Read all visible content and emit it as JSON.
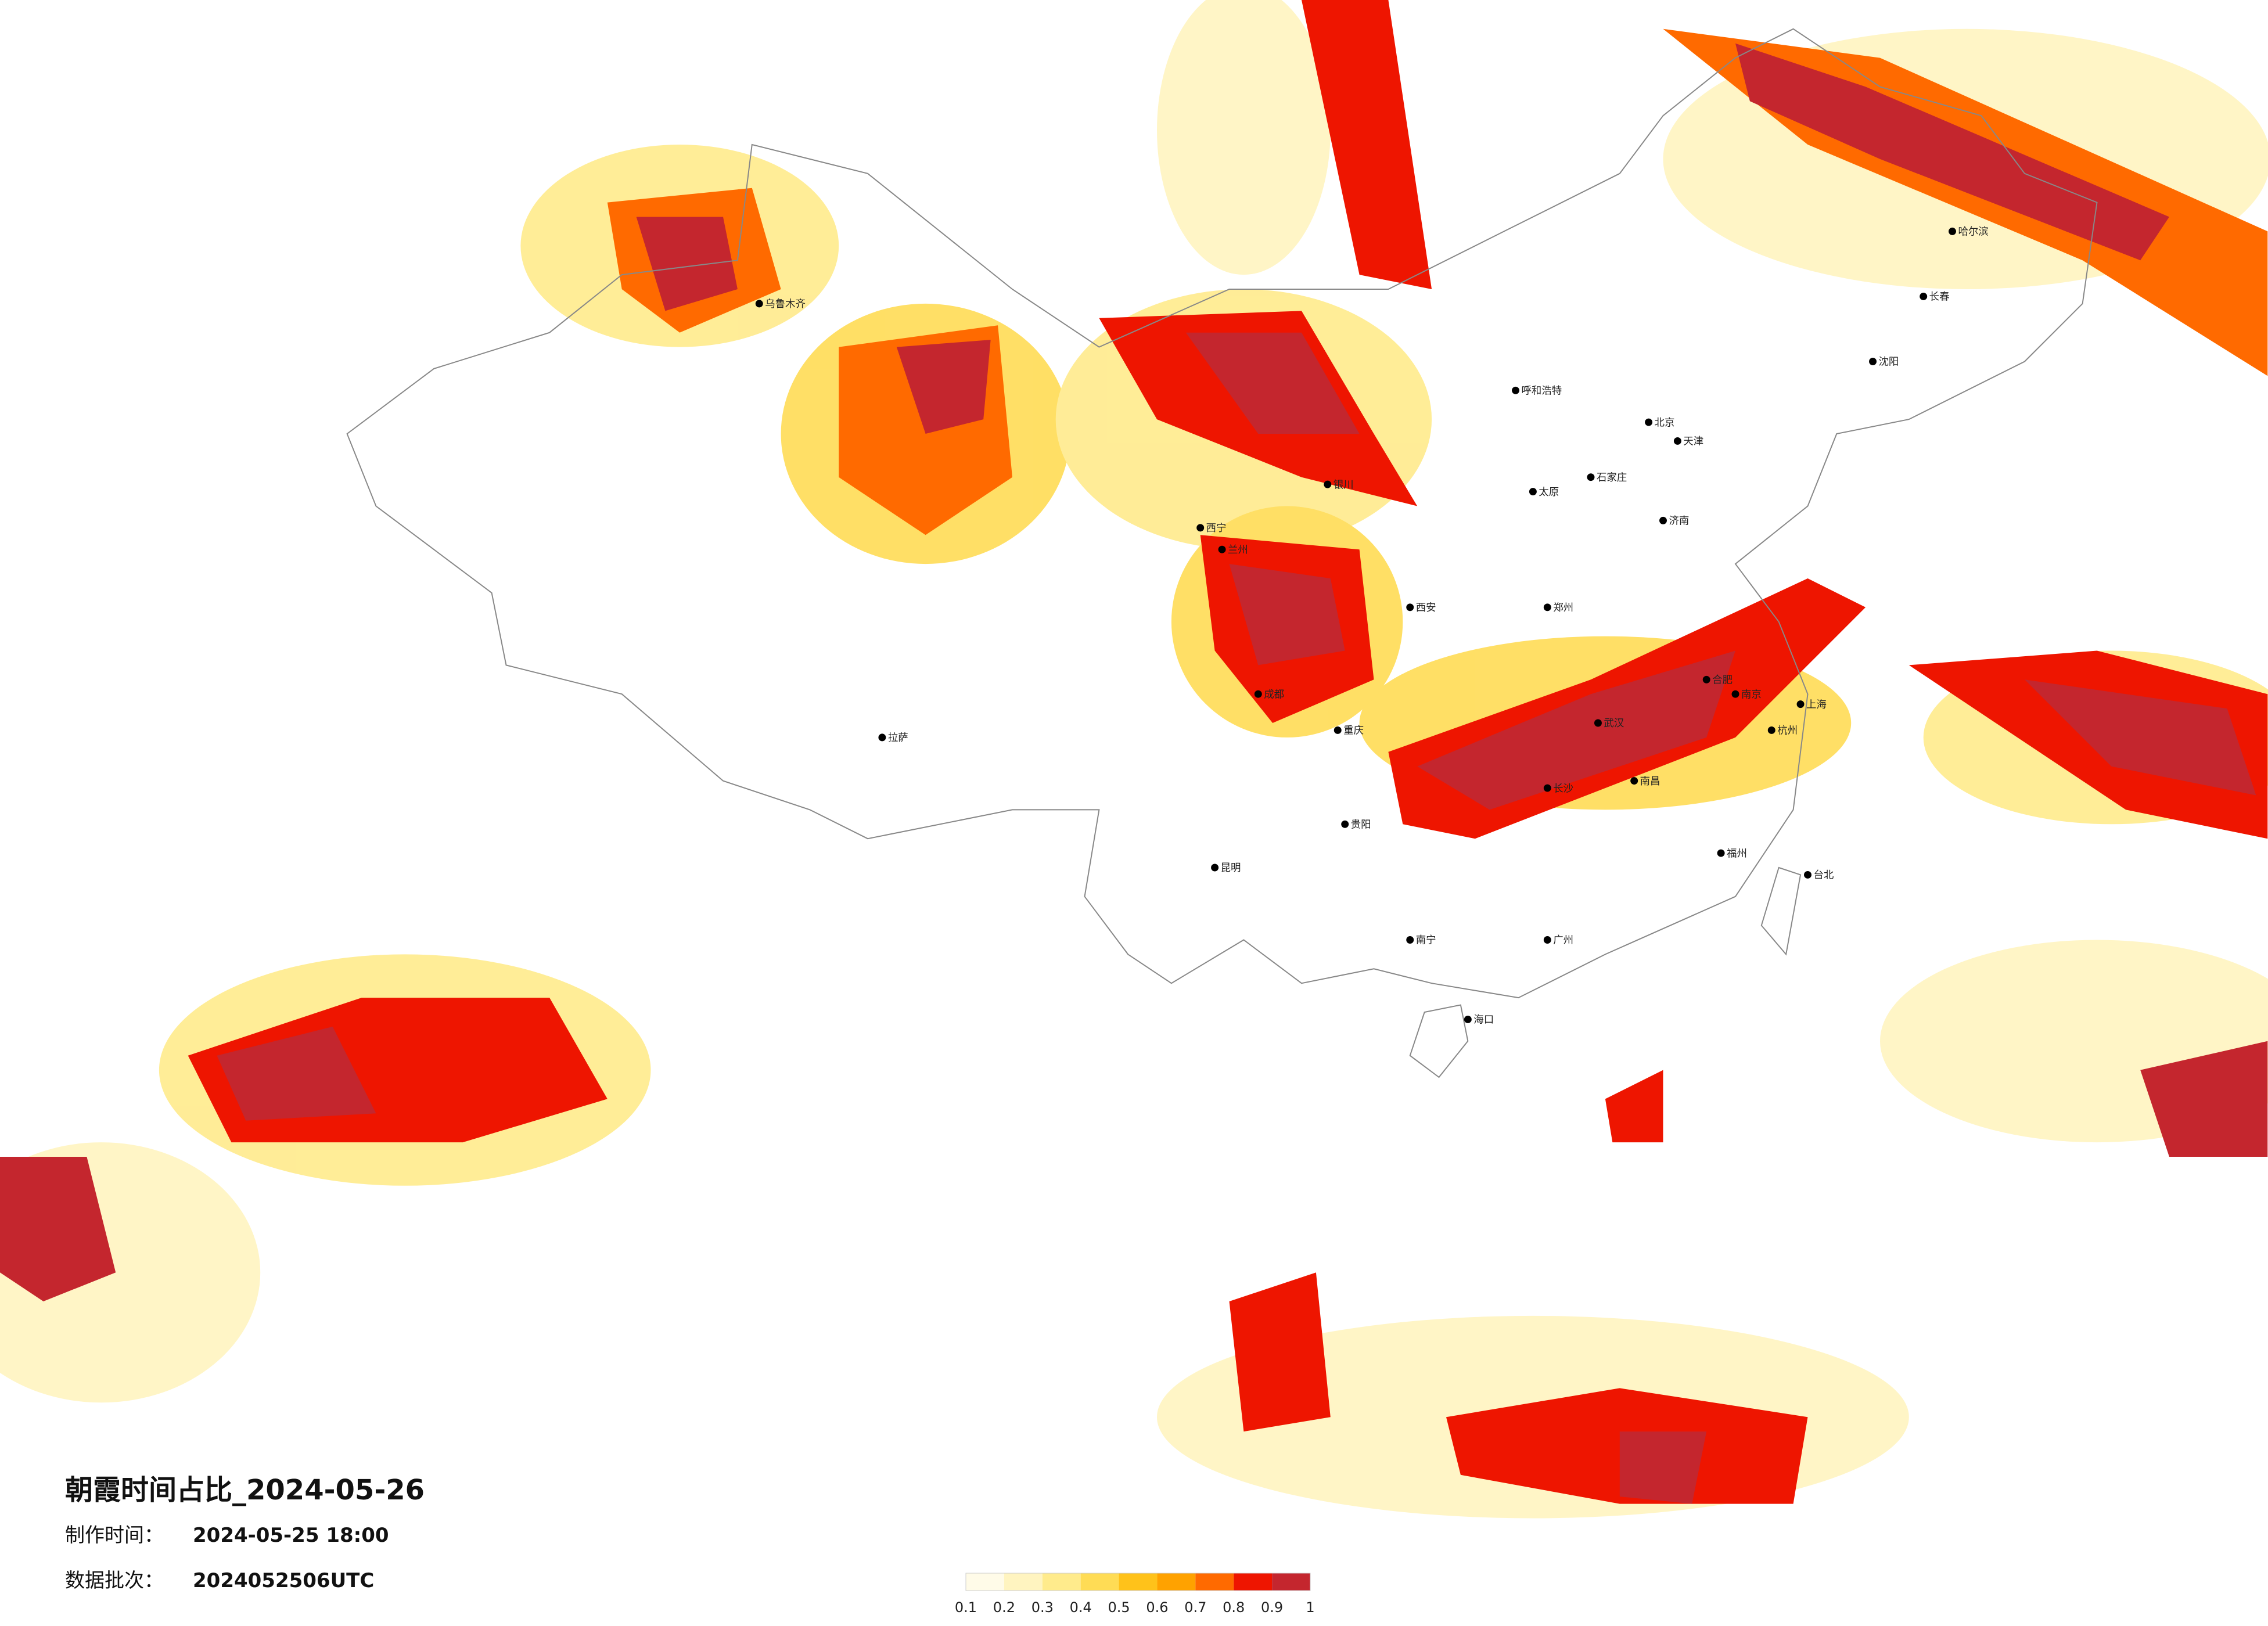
{
  "title": "朝霞时间占比_2024-05-26",
  "made_label": "制作时间：",
  "made_time": "2024-05-25 18:00",
  "batch_label": "数据批次：",
  "batch": "2024052506UTC",
  "colorbar": {
    "colors": [
      "#fffbe8",
      "#fff4c0",
      "#ffeb8c",
      "#ffdc55",
      "#ffc21a",
      "#ffa200",
      "#ff6a00",
      "#ee1500",
      "#c4262e"
    ],
    "ticks": [
      0.1,
      0.2,
      0.3,
      0.4,
      0.5,
      0.6,
      0.7,
      0.8,
      0.9,
      1
    ]
  },
  "cities": [
    "北京",
    "天津",
    "上海",
    "南京",
    "杭州",
    "武汉",
    "长沙",
    "广州",
    "成都",
    "重庆",
    "西安",
    "兰州",
    "乌鲁木齐",
    "拉萨",
    "昆明",
    "贵阳",
    "南宁",
    "海口",
    "郑州",
    "济南",
    "哈尔滨",
    "长春",
    "沈阳",
    "呼和浩特",
    "银川",
    "西宁",
    "福州",
    "南昌",
    "合肥",
    "石家庄",
    "太原",
    "台北"
  ]
}
